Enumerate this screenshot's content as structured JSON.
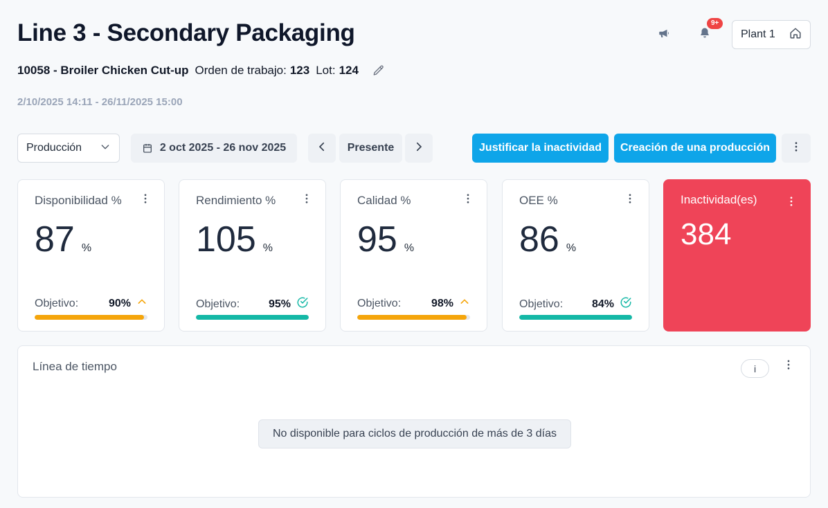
{
  "header": {
    "title": "Line 3 - Secondary Packaging",
    "product": "10058 - Broiler Chicken Cut-up",
    "work_order_label": "Orden de trabajo:",
    "work_order_value": "123",
    "lot_label": "Lot:",
    "lot_value": "124",
    "date_range": "2/10/2025 14:11 - 26/11/2025 15:00",
    "notification_badge": "9+",
    "plant": "Plant 1"
  },
  "toolbar": {
    "view_select": "Producción",
    "date_range": "2 oct 2025 - 26 nov 2025",
    "present_label": "Presente",
    "justify_label": "Justificar la inactividad",
    "create_label": "Creación de una producción"
  },
  "kpis": [
    {
      "label": "Disponibilidad %",
      "value": "87",
      "unit": "%",
      "objective_label": "Objetivo:",
      "target": "90%",
      "status": "below",
      "progress": 0.97,
      "color": "#f5a50b"
    },
    {
      "label": "Rendimiento %",
      "value": "105",
      "unit": "%",
      "objective_label": "Objetivo:",
      "target": "95%",
      "status": "met",
      "progress": 1.0,
      "color": "#14b8a6"
    },
    {
      "label": "Calidad %",
      "value": "95",
      "unit": "%",
      "objective_label": "Objetivo:",
      "target": "98%",
      "status": "below",
      "progress": 0.97,
      "color": "#f5a50b"
    },
    {
      "label": "OEE %",
      "value": "86",
      "unit": "%",
      "objective_label": "Objetivo:",
      "target": "84%",
      "status": "met",
      "progress": 1.0,
      "color": "#14b8a6"
    }
  ],
  "inactivity": {
    "label": "Inactividad(es)",
    "value": "384",
    "color": "#ef4458"
  },
  "timeline": {
    "title": "Línea de tiempo",
    "info_label": "i",
    "notice": "No disponible para ciclos de producción de más de 3 días"
  }
}
